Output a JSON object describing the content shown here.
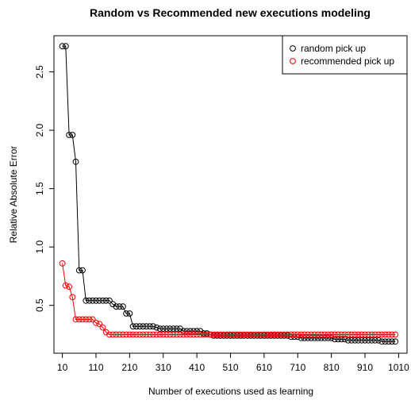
{
  "chart_data": {
    "type": "scatter",
    "title": "Random vs Recommended new executions modeling",
    "xlabel": "Number of executions used as learning",
    "ylabel": "Relative Absolute Error",
    "xlim": [
      -15,
      1035
    ],
    "ylim": [
      0.09,
      2.81
    ],
    "xticks": [
      10,
      110,
      210,
      310,
      410,
      510,
      610,
      710,
      810,
      910,
      1010
    ],
    "yticks": [
      0.5,
      1.0,
      1.5,
      2.0,
      2.5
    ],
    "ytick_labels": [
      "0.5",
      "1.0",
      "1.5",
      "2.0",
      "2.5"
    ],
    "legend_position": "top-right",
    "connected_lines": true,
    "marker": "open-circle",
    "series": [
      {
        "name": "random pick up",
        "color": "#000000",
        "points": [
          [
            10,
            2.72
          ],
          [
            20,
            2.72
          ],
          [
            30,
            1.96
          ],
          [
            40,
            1.96
          ],
          [
            50,
            1.73
          ],
          [
            60,
            0.8
          ],
          [
            70,
            0.8
          ],
          [
            80,
            0.54
          ],
          [
            90,
            0.54
          ],
          [
            100,
            0.54
          ],
          [
            110,
            0.54
          ],
          [
            120,
            0.54
          ],
          [
            130,
            0.54
          ],
          [
            140,
            0.54
          ],
          [
            150,
            0.54
          ],
          [
            160,
            0.51
          ],
          [
            170,
            0.49
          ],
          [
            180,
            0.49
          ],
          [
            190,
            0.49
          ],
          [
            200,
            0.43
          ],
          [
            210,
            0.43
          ],
          [
            220,
            0.32
          ],
          [
            230,
            0.32
          ],
          [
            240,
            0.32
          ],
          [
            250,
            0.32
          ],
          [
            260,
            0.32
          ],
          [
            270,
            0.32
          ],
          [
            280,
            0.32
          ],
          [
            290,
            0.31
          ],
          [
            300,
            0.3
          ],
          [
            310,
            0.3
          ],
          [
            320,
            0.3
          ],
          [
            330,
            0.3
          ],
          [
            340,
            0.3
          ],
          [
            350,
            0.3
          ],
          [
            360,
            0.3
          ],
          [
            370,
            0.28
          ],
          [
            380,
            0.28
          ],
          [
            390,
            0.28
          ],
          [
            400,
            0.28
          ],
          [
            410,
            0.28
          ],
          [
            420,
            0.28
          ],
          [
            430,
            0.26
          ],
          [
            440,
            0.26
          ],
          [
            450,
            0.25
          ],
          [
            460,
            0.24
          ],
          [
            470,
            0.24
          ],
          [
            480,
            0.24
          ],
          [
            490,
            0.24
          ],
          [
            500,
            0.24
          ],
          [
            510,
            0.24
          ],
          [
            520,
            0.24
          ],
          [
            530,
            0.24
          ],
          [
            540,
            0.24
          ],
          [
            550,
            0.24
          ],
          [
            560,
            0.24
          ],
          [
            570,
            0.24
          ],
          [
            580,
            0.24
          ],
          [
            590,
            0.24
          ],
          [
            600,
            0.24
          ],
          [
            610,
            0.24
          ],
          [
            620,
            0.24
          ],
          [
            630,
            0.24
          ],
          [
            640,
            0.24
          ],
          [
            650,
            0.24
          ],
          [
            660,
            0.24
          ],
          [
            670,
            0.24
          ],
          [
            680,
            0.24
          ],
          [
            690,
            0.23
          ],
          [
            700,
            0.23
          ],
          [
            710,
            0.23
          ],
          [
            720,
            0.22
          ],
          [
            730,
            0.22
          ],
          [
            740,
            0.22
          ],
          [
            750,
            0.22
          ],
          [
            760,
            0.22
          ],
          [
            770,
            0.22
          ],
          [
            780,
            0.22
          ],
          [
            790,
            0.22
          ],
          [
            800,
            0.22
          ],
          [
            810,
            0.22
          ],
          [
            820,
            0.21
          ],
          [
            830,
            0.21
          ],
          [
            840,
            0.21
          ],
          [
            850,
            0.21
          ],
          [
            860,
            0.2
          ],
          [
            870,
            0.2
          ],
          [
            880,
            0.2
          ],
          [
            890,
            0.2
          ],
          [
            900,
            0.2
          ],
          [
            910,
            0.2
          ],
          [
            920,
            0.2
          ],
          [
            930,
            0.2
          ],
          [
            940,
            0.2
          ],
          [
            950,
            0.2
          ],
          [
            960,
            0.19
          ],
          [
            970,
            0.19
          ],
          [
            980,
            0.19
          ],
          [
            990,
            0.19
          ],
          [
            1000,
            0.19
          ]
        ]
      },
      {
        "name": "recommended pick up",
        "color": "#ff0000",
        "points": [
          [
            10,
            0.86
          ],
          [
            20,
            0.67
          ],
          [
            30,
            0.66
          ],
          [
            40,
            0.57
          ],
          [
            50,
            0.38
          ],
          [
            60,
            0.38
          ],
          [
            70,
            0.38
          ],
          [
            80,
            0.38
          ],
          [
            90,
            0.38
          ],
          [
            100,
            0.38
          ],
          [
            110,
            0.35
          ],
          [
            120,
            0.34
          ],
          [
            130,
            0.31
          ],
          [
            140,
            0.27
          ],
          [
            150,
            0.25
          ],
          [
            160,
            0.25
          ],
          [
            170,
            0.25
          ],
          [
            180,
            0.25
          ],
          [
            190,
            0.25
          ],
          [
            200,
            0.25
          ],
          [
            210,
            0.25
          ],
          [
            220,
            0.25
          ],
          [
            230,
            0.25
          ],
          [
            240,
            0.25
          ],
          [
            250,
            0.25
          ],
          [
            260,
            0.25
          ],
          [
            270,
            0.25
          ],
          [
            280,
            0.25
          ],
          [
            290,
            0.25
          ],
          [
            300,
            0.25
          ],
          [
            310,
            0.25
          ],
          [
            320,
            0.25
          ],
          [
            330,
            0.25
          ],
          [
            340,
            0.25
          ],
          [
            350,
            0.25
          ],
          [
            360,
            0.25
          ],
          [
            370,
            0.25
          ],
          [
            380,
            0.25
          ],
          [
            390,
            0.25
          ],
          [
            400,
            0.25
          ],
          [
            410,
            0.25
          ],
          [
            420,
            0.25
          ],
          [
            430,
            0.25
          ],
          [
            440,
            0.25
          ],
          [
            450,
            0.25
          ],
          [
            460,
            0.25
          ],
          [
            470,
            0.25
          ],
          [
            480,
            0.25
          ],
          [
            490,
            0.25
          ],
          [
            500,
            0.25
          ],
          [
            510,
            0.25
          ],
          [
            520,
            0.25
          ],
          [
            530,
            0.25
          ],
          [
            540,
            0.25
          ],
          [
            550,
            0.25
          ],
          [
            560,
            0.25
          ],
          [
            570,
            0.25
          ],
          [
            580,
            0.25
          ],
          [
            590,
            0.25
          ],
          [
            600,
            0.25
          ],
          [
            610,
            0.25
          ],
          [
            620,
            0.25
          ],
          [
            630,
            0.25
          ],
          [
            640,
            0.25
          ],
          [
            650,
            0.25
          ],
          [
            660,
            0.25
          ],
          [
            670,
            0.25
          ],
          [
            680,
            0.25
          ],
          [
            690,
            0.25
          ],
          [
            700,
            0.25
          ],
          [
            710,
            0.25
          ],
          [
            720,
            0.25
          ],
          [
            730,
            0.25
          ],
          [
            740,
            0.25
          ],
          [
            750,
            0.25
          ],
          [
            760,
            0.25
          ],
          [
            770,
            0.25
          ],
          [
            780,
            0.25
          ],
          [
            790,
            0.25
          ],
          [
            800,
            0.25
          ],
          [
            810,
            0.25
          ],
          [
            820,
            0.25
          ],
          [
            830,
            0.25
          ],
          [
            840,
            0.25
          ],
          [
            850,
            0.25
          ],
          [
            860,
            0.25
          ],
          [
            870,
            0.25
          ],
          [
            880,
            0.25
          ],
          [
            890,
            0.25
          ],
          [
            900,
            0.25
          ],
          [
            910,
            0.25
          ],
          [
            920,
            0.25
          ],
          [
            930,
            0.25
          ],
          [
            940,
            0.25
          ],
          [
            950,
            0.25
          ],
          [
            960,
            0.25
          ],
          [
            970,
            0.25
          ],
          [
            980,
            0.25
          ],
          [
            990,
            0.25
          ],
          [
            1000,
            0.25
          ]
        ]
      }
    ]
  }
}
